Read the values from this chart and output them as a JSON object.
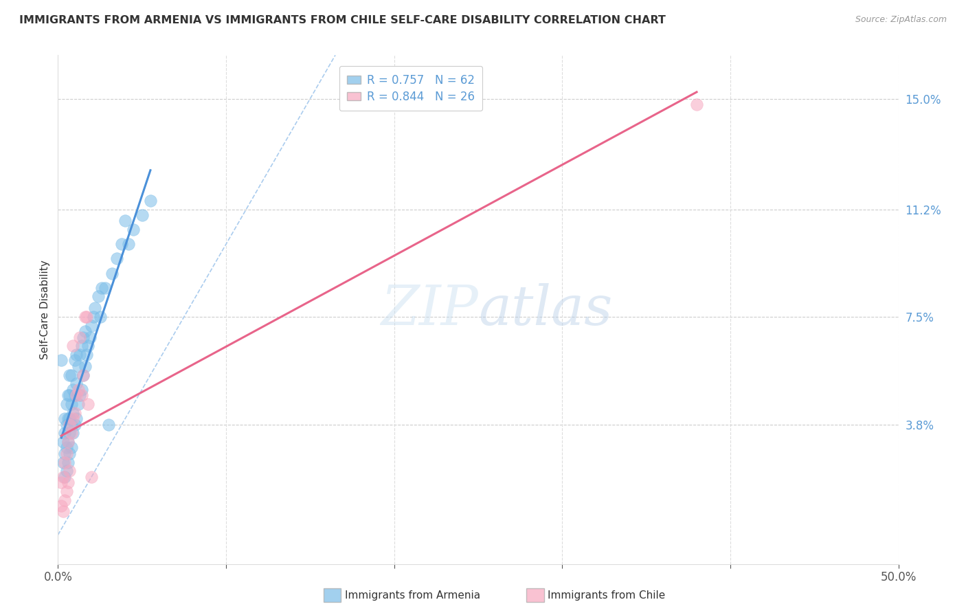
{
  "title": "IMMIGRANTS FROM ARMENIA VS IMMIGRANTS FROM CHILE SELF-CARE DISABILITY CORRELATION CHART",
  "source": "Source: ZipAtlas.com",
  "ylabel": "Self-Care Disability",
  "right_yticks": [
    "15.0%",
    "11.2%",
    "7.5%",
    "3.8%"
  ],
  "right_ytick_vals": [
    0.15,
    0.112,
    0.075,
    0.038
  ],
  "xlim": [
    0.0,
    0.5
  ],
  "ylim": [
    -0.01,
    0.165
  ],
  "legend_armenia_R": "0.757",
  "legend_armenia_N": "62",
  "legend_chile_R": "0.844",
  "legend_chile_N": "26",
  "armenia_color": "#7bbde8",
  "chile_color": "#f7a8c0",
  "armenia_line_color": "#4a90d9",
  "chile_line_color": "#e8648a",
  "diagonal_color": "#aaccee",
  "watermark_zip": "ZIP",
  "watermark_atlas": "atlas",
  "armenia_points_x": [
    0.002,
    0.003,
    0.003,
    0.004,
    0.004,
    0.004,
    0.004,
    0.005,
    0.005,
    0.005,
    0.005,
    0.006,
    0.006,
    0.006,
    0.006,
    0.007,
    0.007,
    0.007,
    0.007,
    0.007,
    0.008,
    0.008,
    0.008,
    0.008,
    0.009,
    0.009,
    0.009,
    0.01,
    0.01,
    0.01,
    0.011,
    0.011,
    0.011,
    0.012,
    0.012,
    0.013,
    0.013,
    0.014,
    0.014,
    0.015,
    0.015,
    0.016,
    0.016,
    0.017,
    0.018,
    0.019,
    0.02,
    0.021,
    0.022,
    0.024,
    0.025,
    0.026,
    0.028,
    0.03,
    0.032,
    0.035,
    0.038,
    0.04,
    0.042,
    0.045,
    0.05,
    0.055
  ],
  "armenia_points_y": [
    0.06,
    0.025,
    0.032,
    0.02,
    0.028,
    0.035,
    0.04,
    0.022,
    0.03,
    0.038,
    0.045,
    0.025,
    0.032,
    0.04,
    0.048,
    0.028,
    0.035,
    0.04,
    0.048,
    0.055,
    0.03,
    0.038,
    0.045,
    0.055,
    0.035,
    0.042,
    0.05,
    0.038,
    0.048,
    0.06,
    0.04,
    0.052,
    0.062,
    0.045,
    0.058,
    0.048,
    0.062,
    0.05,
    0.065,
    0.055,
    0.068,
    0.058,
    0.07,
    0.062,
    0.065,
    0.068,
    0.072,
    0.075,
    0.078,
    0.082,
    0.075,
    0.085,
    0.085,
    0.038,
    0.09,
    0.095,
    0.1,
    0.108,
    0.1,
    0.105,
    0.11,
    0.115
  ],
  "chile_points_x": [
    0.002,
    0.002,
    0.003,
    0.003,
    0.004,
    0.004,
    0.005,
    0.005,
    0.006,
    0.006,
    0.007,
    0.007,
    0.008,
    0.009,
    0.009,
    0.01,
    0.011,
    0.012,
    0.013,
    0.014,
    0.015,
    0.016,
    0.017,
    0.018,
    0.02,
    0.38
  ],
  "chile_points_y": [
    0.01,
    0.018,
    0.008,
    0.02,
    0.012,
    0.025,
    0.015,
    0.028,
    0.018,
    0.032,
    0.022,
    0.038,
    0.035,
    0.04,
    0.065,
    0.042,
    0.048,
    0.05,
    0.068,
    0.048,
    0.055,
    0.075,
    0.075,
    0.045,
    0.02,
    0.148
  ]
}
